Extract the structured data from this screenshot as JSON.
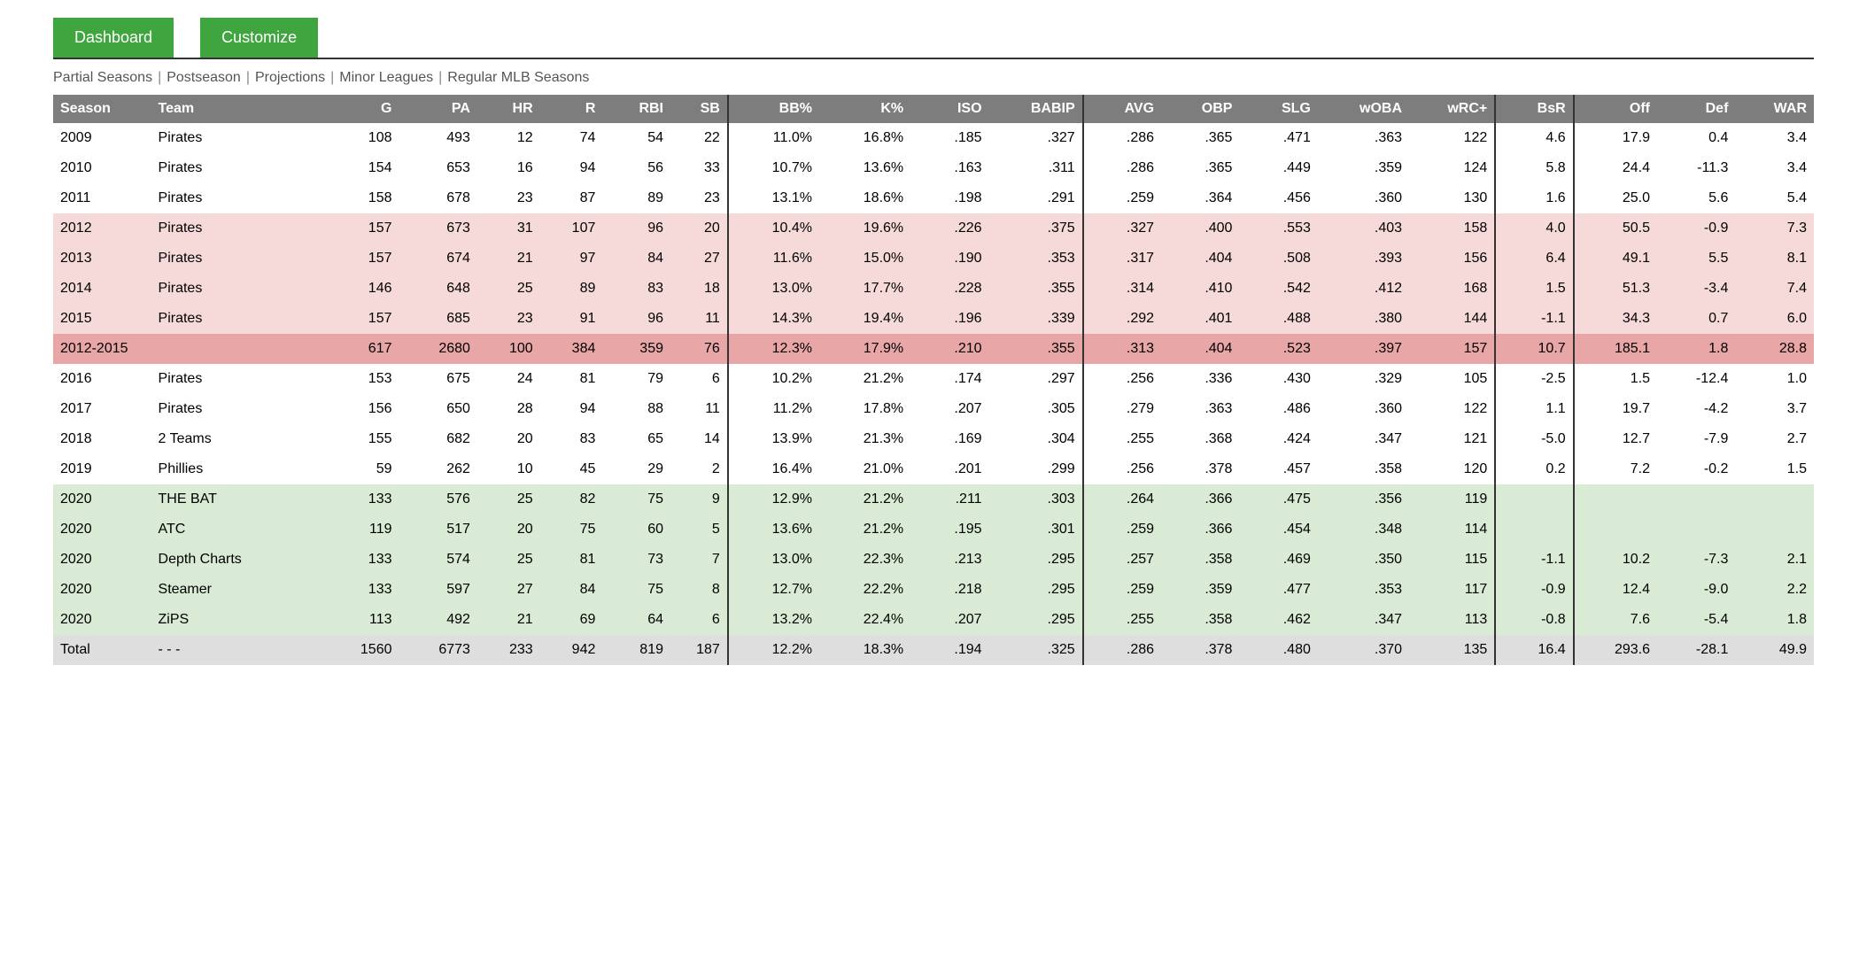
{
  "colors": {
    "button_bg": "#3fa63f",
    "header_bg": "#7d7d7d",
    "row_white": "#ffffff",
    "row_pink": "#f6dada",
    "row_red": "#e8a6a6",
    "row_green": "#d9ebd4",
    "row_gray": "#dedede",
    "divider": "#333333"
  },
  "buttons": {
    "dashboard": "Dashboard",
    "customize": "Customize"
  },
  "filters": {
    "items": [
      "Partial Seasons",
      "Postseason",
      "Projections",
      "Minor Leagues",
      "Regular MLB Seasons"
    ]
  },
  "table": {
    "columns": [
      {
        "key": "season",
        "label": "Season",
        "align": "l",
        "class": "col-season"
      },
      {
        "key": "team",
        "label": "Team",
        "align": "l",
        "class": "col-team"
      },
      {
        "key": "g",
        "label": "G",
        "class": "col-g"
      },
      {
        "key": "pa",
        "label": "PA",
        "class": "col-pa"
      },
      {
        "key": "hr",
        "label": "HR",
        "class": "col-hr"
      },
      {
        "key": "r",
        "label": "R",
        "class": "col-r"
      },
      {
        "key": "rbi",
        "label": "RBI",
        "class": "col-rbi"
      },
      {
        "key": "sb",
        "label": "SB",
        "class": "col-sb vdiv-r"
      },
      {
        "key": "bb",
        "label": "BB%",
        "class": "col-bb"
      },
      {
        "key": "k",
        "label": "K%",
        "class": "col-k"
      },
      {
        "key": "iso",
        "label": "ISO",
        "class": "col-iso"
      },
      {
        "key": "babip",
        "label": "BABIP",
        "class": "col-babip vdiv-r"
      },
      {
        "key": "avg",
        "label": "AVG",
        "class": "col-avg"
      },
      {
        "key": "obp",
        "label": "OBP",
        "class": "col-obp"
      },
      {
        "key": "slg",
        "label": "SLG",
        "class": "col-slg"
      },
      {
        "key": "woba",
        "label": "wOBA",
        "class": "col-woba"
      },
      {
        "key": "wrc",
        "label": "wRC+",
        "class": "col-wrc vdiv-r"
      },
      {
        "key": "bsr",
        "label": "BsR",
        "class": "col-bsr vdiv-r"
      },
      {
        "key": "off",
        "label": "Off",
        "class": "col-off"
      },
      {
        "key": "def",
        "label": "Def",
        "class": "col-def"
      },
      {
        "key": "war",
        "label": "WAR",
        "class": "col-war"
      }
    ],
    "rows": [
      {
        "style": "row-white",
        "season": "2009",
        "team": "Pirates",
        "g": "108",
        "pa": "493",
        "hr": "12",
        "r": "74",
        "rbi": "54",
        "sb": "22",
        "bb": "11.0%",
        "k": "16.8%",
        "iso": ".185",
        "babip": ".327",
        "avg": ".286",
        "obp": ".365",
        "slg": ".471",
        "woba": ".363",
        "wrc": "122",
        "bsr": "4.6",
        "off": "17.9",
        "def": "0.4",
        "war": "3.4"
      },
      {
        "style": "row-white",
        "season": "2010",
        "team": "Pirates",
        "g": "154",
        "pa": "653",
        "hr": "16",
        "r": "94",
        "rbi": "56",
        "sb": "33",
        "bb": "10.7%",
        "k": "13.6%",
        "iso": ".163",
        "babip": ".311",
        "avg": ".286",
        "obp": ".365",
        "slg": ".449",
        "woba": ".359",
        "wrc": "124",
        "bsr": "5.8",
        "off": "24.4",
        "def": "-11.3",
        "war": "3.4"
      },
      {
        "style": "row-white",
        "season": "2011",
        "team": "Pirates",
        "g": "158",
        "pa": "678",
        "hr": "23",
        "r": "87",
        "rbi": "89",
        "sb": "23",
        "bb": "13.1%",
        "k": "18.6%",
        "iso": ".198",
        "babip": ".291",
        "avg": ".259",
        "obp": ".364",
        "slg": ".456",
        "woba": ".360",
        "wrc": "130",
        "bsr": "1.6",
        "off": "25.0",
        "def": "5.6",
        "war": "5.4"
      },
      {
        "style": "row-pink",
        "season": "2012",
        "team": "Pirates",
        "g": "157",
        "pa": "673",
        "hr": "31",
        "r": "107",
        "rbi": "96",
        "sb": "20",
        "bb": "10.4%",
        "k": "19.6%",
        "iso": ".226",
        "babip": ".375",
        "avg": ".327",
        "obp": ".400",
        "slg": ".553",
        "woba": ".403",
        "wrc": "158",
        "bsr": "4.0",
        "off": "50.5",
        "def": "-0.9",
        "war": "7.3"
      },
      {
        "style": "row-pink",
        "season": "2013",
        "team": "Pirates",
        "g": "157",
        "pa": "674",
        "hr": "21",
        "r": "97",
        "rbi": "84",
        "sb": "27",
        "bb": "11.6%",
        "k": "15.0%",
        "iso": ".190",
        "babip": ".353",
        "avg": ".317",
        "obp": ".404",
        "slg": ".508",
        "woba": ".393",
        "wrc": "156",
        "bsr": "6.4",
        "off": "49.1",
        "def": "5.5",
        "war": "8.1"
      },
      {
        "style": "row-pink",
        "season": "2014",
        "team": "Pirates",
        "g": "146",
        "pa": "648",
        "hr": "25",
        "r": "89",
        "rbi": "83",
        "sb": "18",
        "bb": "13.0%",
        "k": "17.7%",
        "iso": ".228",
        "babip": ".355",
        "avg": ".314",
        "obp": ".410",
        "slg": ".542",
        "woba": ".412",
        "wrc": "168",
        "bsr": "1.5",
        "off": "51.3",
        "def": "-3.4",
        "war": "7.4"
      },
      {
        "style": "row-pink",
        "season": "2015",
        "team": "Pirates",
        "g": "157",
        "pa": "685",
        "hr": "23",
        "r": "91",
        "rbi": "96",
        "sb": "11",
        "bb": "14.3%",
        "k": "19.4%",
        "iso": ".196",
        "babip": ".339",
        "avg": ".292",
        "obp": ".401",
        "slg": ".488",
        "woba": ".380",
        "wrc": "144",
        "bsr": "-1.1",
        "off": "34.3",
        "def": "0.7",
        "war": "6.0"
      },
      {
        "style": "row-red",
        "season": "2012-2015",
        "team": "",
        "g": "617",
        "pa": "2680",
        "hr": "100",
        "r": "384",
        "rbi": "359",
        "sb": "76",
        "bb": "12.3%",
        "k": "17.9%",
        "iso": ".210",
        "babip": ".355",
        "avg": ".313",
        "obp": ".404",
        "slg": ".523",
        "woba": ".397",
        "wrc": "157",
        "bsr": "10.7",
        "off": "185.1",
        "def": "1.8",
        "war": "28.8"
      },
      {
        "style": "row-white",
        "season": "2016",
        "team": "Pirates",
        "g": "153",
        "pa": "675",
        "hr": "24",
        "r": "81",
        "rbi": "79",
        "sb": "6",
        "bb": "10.2%",
        "k": "21.2%",
        "iso": ".174",
        "babip": ".297",
        "avg": ".256",
        "obp": ".336",
        "slg": ".430",
        "woba": ".329",
        "wrc": "105",
        "bsr": "-2.5",
        "off": "1.5",
        "def": "-12.4",
        "war": "1.0"
      },
      {
        "style": "row-white",
        "season": "2017",
        "team": "Pirates",
        "g": "156",
        "pa": "650",
        "hr": "28",
        "r": "94",
        "rbi": "88",
        "sb": "11",
        "bb": "11.2%",
        "k": "17.8%",
        "iso": ".207",
        "babip": ".305",
        "avg": ".279",
        "obp": ".363",
        "slg": ".486",
        "woba": ".360",
        "wrc": "122",
        "bsr": "1.1",
        "off": "19.7",
        "def": "-4.2",
        "war": "3.7"
      },
      {
        "style": "row-white",
        "season": "2018",
        "team": "2 Teams",
        "g": "155",
        "pa": "682",
        "hr": "20",
        "r": "83",
        "rbi": "65",
        "sb": "14",
        "bb": "13.9%",
        "k": "21.3%",
        "iso": ".169",
        "babip": ".304",
        "avg": ".255",
        "obp": ".368",
        "slg": ".424",
        "woba": ".347",
        "wrc": "121",
        "bsr": "-5.0",
        "off": "12.7",
        "def": "-7.9",
        "war": "2.7"
      },
      {
        "style": "row-white",
        "season": "2019",
        "team": "Phillies",
        "g": "59",
        "pa": "262",
        "hr": "10",
        "r": "45",
        "rbi": "29",
        "sb": "2",
        "bb": "16.4%",
        "k": "21.0%",
        "iso": ".201",
        "babip": ".299",
        "avg": ".256",
        "obp": ".378",
        "slg": ".457",
        "woba": ".358",
        "wrc": "120",
        "bsr": "0.2",
        "off": "7.2",
        "def": "-0.2",
        "war": "1.5"
      },
      {
        "style": "row-green",
        "season": "2020",
        "team": "THE BAT",
        "g": "133",
        "pa": "576",
        "hr": "25",
        "r": "82",
        "rbi": "75",
        "sb": "9",
        "bb": "12.9%",
        "k": "21.2%",
        "iso": ".211",
        "babip": ".303",
        "avg": ".264",
        "obp": ".366",
        "slg": ".475",
        "woba": ".356",
        "wrc": "119",
        "bsr": "",
        "off": "",
        "def": "",
        "war": ""
      },
      {
        "style": "row-green",
        "season": "2020",
        "team": "ATC",
        "g": "119",
        "pa": "517",
        "hr": "20",
        "r": "75",
        "rbi": "60",
        "sb": "5",
        "bb": "13.6%",
        "k": "21.2%",
        "iso": ".195",
        "babip": ".301",
        "avg": ".259",
        "obp": ".366",
        "slg": ".454",
        "woba": ".348",
        "wrc": "114",
        "bsr": "",
        "off": "",
        "def": "",
        "war": ""
      },
      {
        "style": "row-green",
        "season": "2020",
        "team": "Depth Charts",
        "g": "133",
        "pa": "574",
        "hr": "25",
        "r": "81",
        "rbi": "73",
        "sb": "7",
        "bb": "13.0%",
        "k": "22.3%",
        "iso": ".213",
        "babip": ".295",
        "avg": ".257",
        "obp": ".358",
        "slg": ".469",
        "woba": ".350",
        "wrc": "115",
        "bsr": "-1.1",
        "off": "10.2",
        "def": "-7.3",
        "war": "2.1"
      },
      {
        "style": "row-green",
        "season": "2020",
        "team": "Steamer",
        "g": "133",
        "pa": "597",
        "hr": "27",
        "r": "84",
        "rbi": "75",
        "sb": "8",
        "bb": "12.7%",
        "k": "22.2%",
        "iso": ".218",
        "babip": ".295",
        "avg": ".259",
        "obp": ".359",
        "slg": ".477",
        "woba": ".353",
        "wrc": "117",
        "bsr": "-0.9",
        "off": "12.4",
        "def": "-9.0",
        "war": "2.2"
      },
      {
        "style": "row-green",
        "season": "2020",
        "team": "ZiPS",
        "g": "113",
        "pa": "492",
        "hr": "21",
        "r": "69",
        "rbi": "64",
        "sb": "6",
        "bb": "13.2%",
        "k": "22.4%",
        "iso": ".207",
        "babip": ".295",
        "avg": ".255",
        "obp": ".358",
        "slg": ".462",
        "woba": ".347",
        "wrc": "113",
        "bsr": "-0.8",
        "off": "7.6",
        "def": "-5.4",
        "war": "1.8"
      },
      {
        "style": "row-gray",
        "season": "Total",
        "team": "- - -",
        "g": "1560",
        "pa": "6773",
        "hr": "233",
        "r": "942",
        "rbi": "819",
        "sb": "187",
        "bb": "12.2%",
        "k": "18.3%",
        "iso": ".194",
        "babip": ".325",
        "avg": ".286",
        "obp": ".378",
        "slg": ".480",
        "woba": ".370",
        "wrc": "135",
        "bsr": "16.4",
        "off": "293.6",
        "def": "-28.1",
        "war": "49.9"
      }
    ]
  }
}
